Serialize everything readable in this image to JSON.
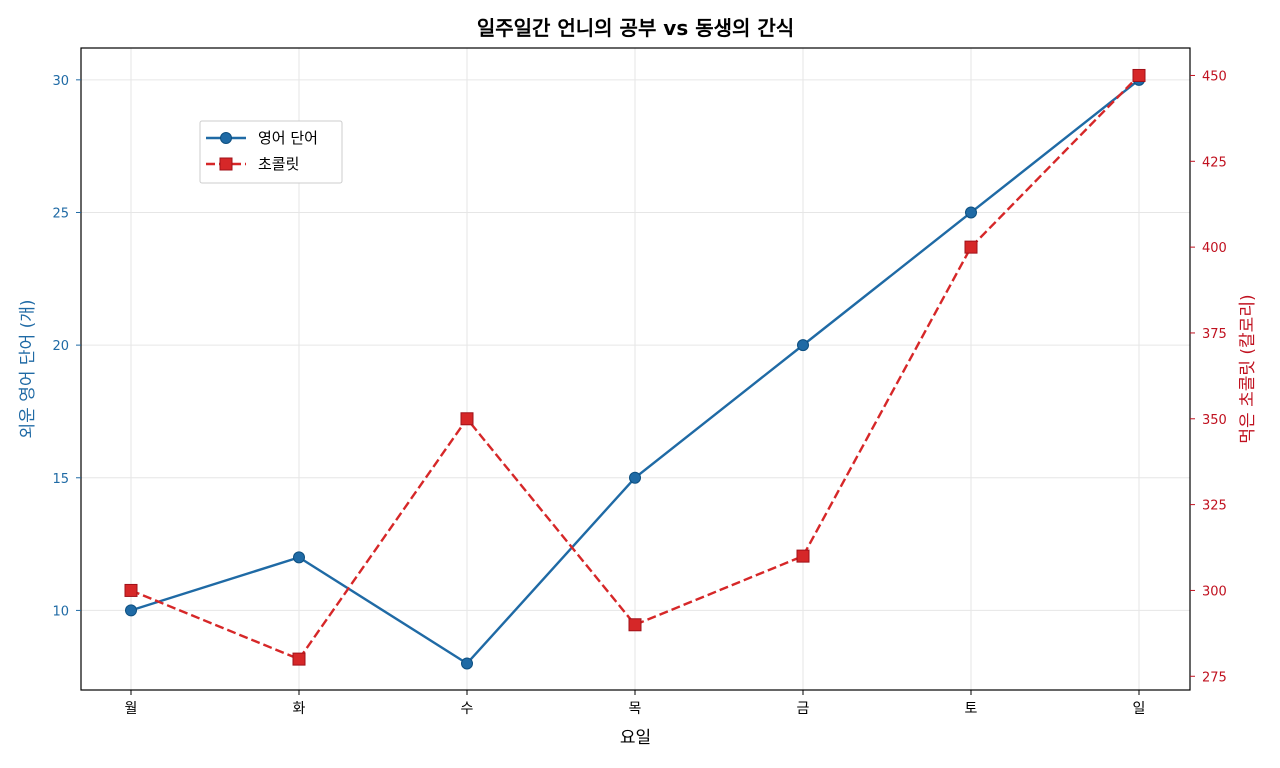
{
  "chart_data": {
    "type": "line",
    "title": "일주일간 언니의 공부 vs 동생의 간식",
    "xlabel": "요일",
    "categories": [
      "월",
      "화",
      "수",
      "목",
      "금",
      "토",
      "일"
    ],
    "y_left": {
      "label": "외운 영어 단어 (개)",
      "lim": [
        7,
        31.2
      ],
      "ticks": [
        10,
        15,
        20,
        25,
        30
      ],
      "color": "#1f6aa5"
    },
    "y_right": {
      "label": "먹은 초콜릿 (칼로리)",
      "lim": [
        271,
        458
      ],
      "ticks": [
        275,
        300,
        325,
        350,
        375,
        400,
        425,
        450
      ],
      "color": "#c0111f"
    },
    "series": [
      {
        "name": "영어 단어",
        "axis": "left",
        "values": [
          10,
          12,
          8,
          15,
          20,
          25,
          30
        ],
        "color": "#1f6aa5",
        "style": "solid",
        "marker": "circle"
      },
      {
        "name": "초콜릿",
        "axis": "right",
        "values": [
          300,
          280,
          350,
          290,
          310,
          400,
          450
        ],
        "color": "#d62728",
        "style": "dashed",
        "marker": "square"
      }
    ],
    "grid": true,
    "legend_position": "upper-left"
  }
}
